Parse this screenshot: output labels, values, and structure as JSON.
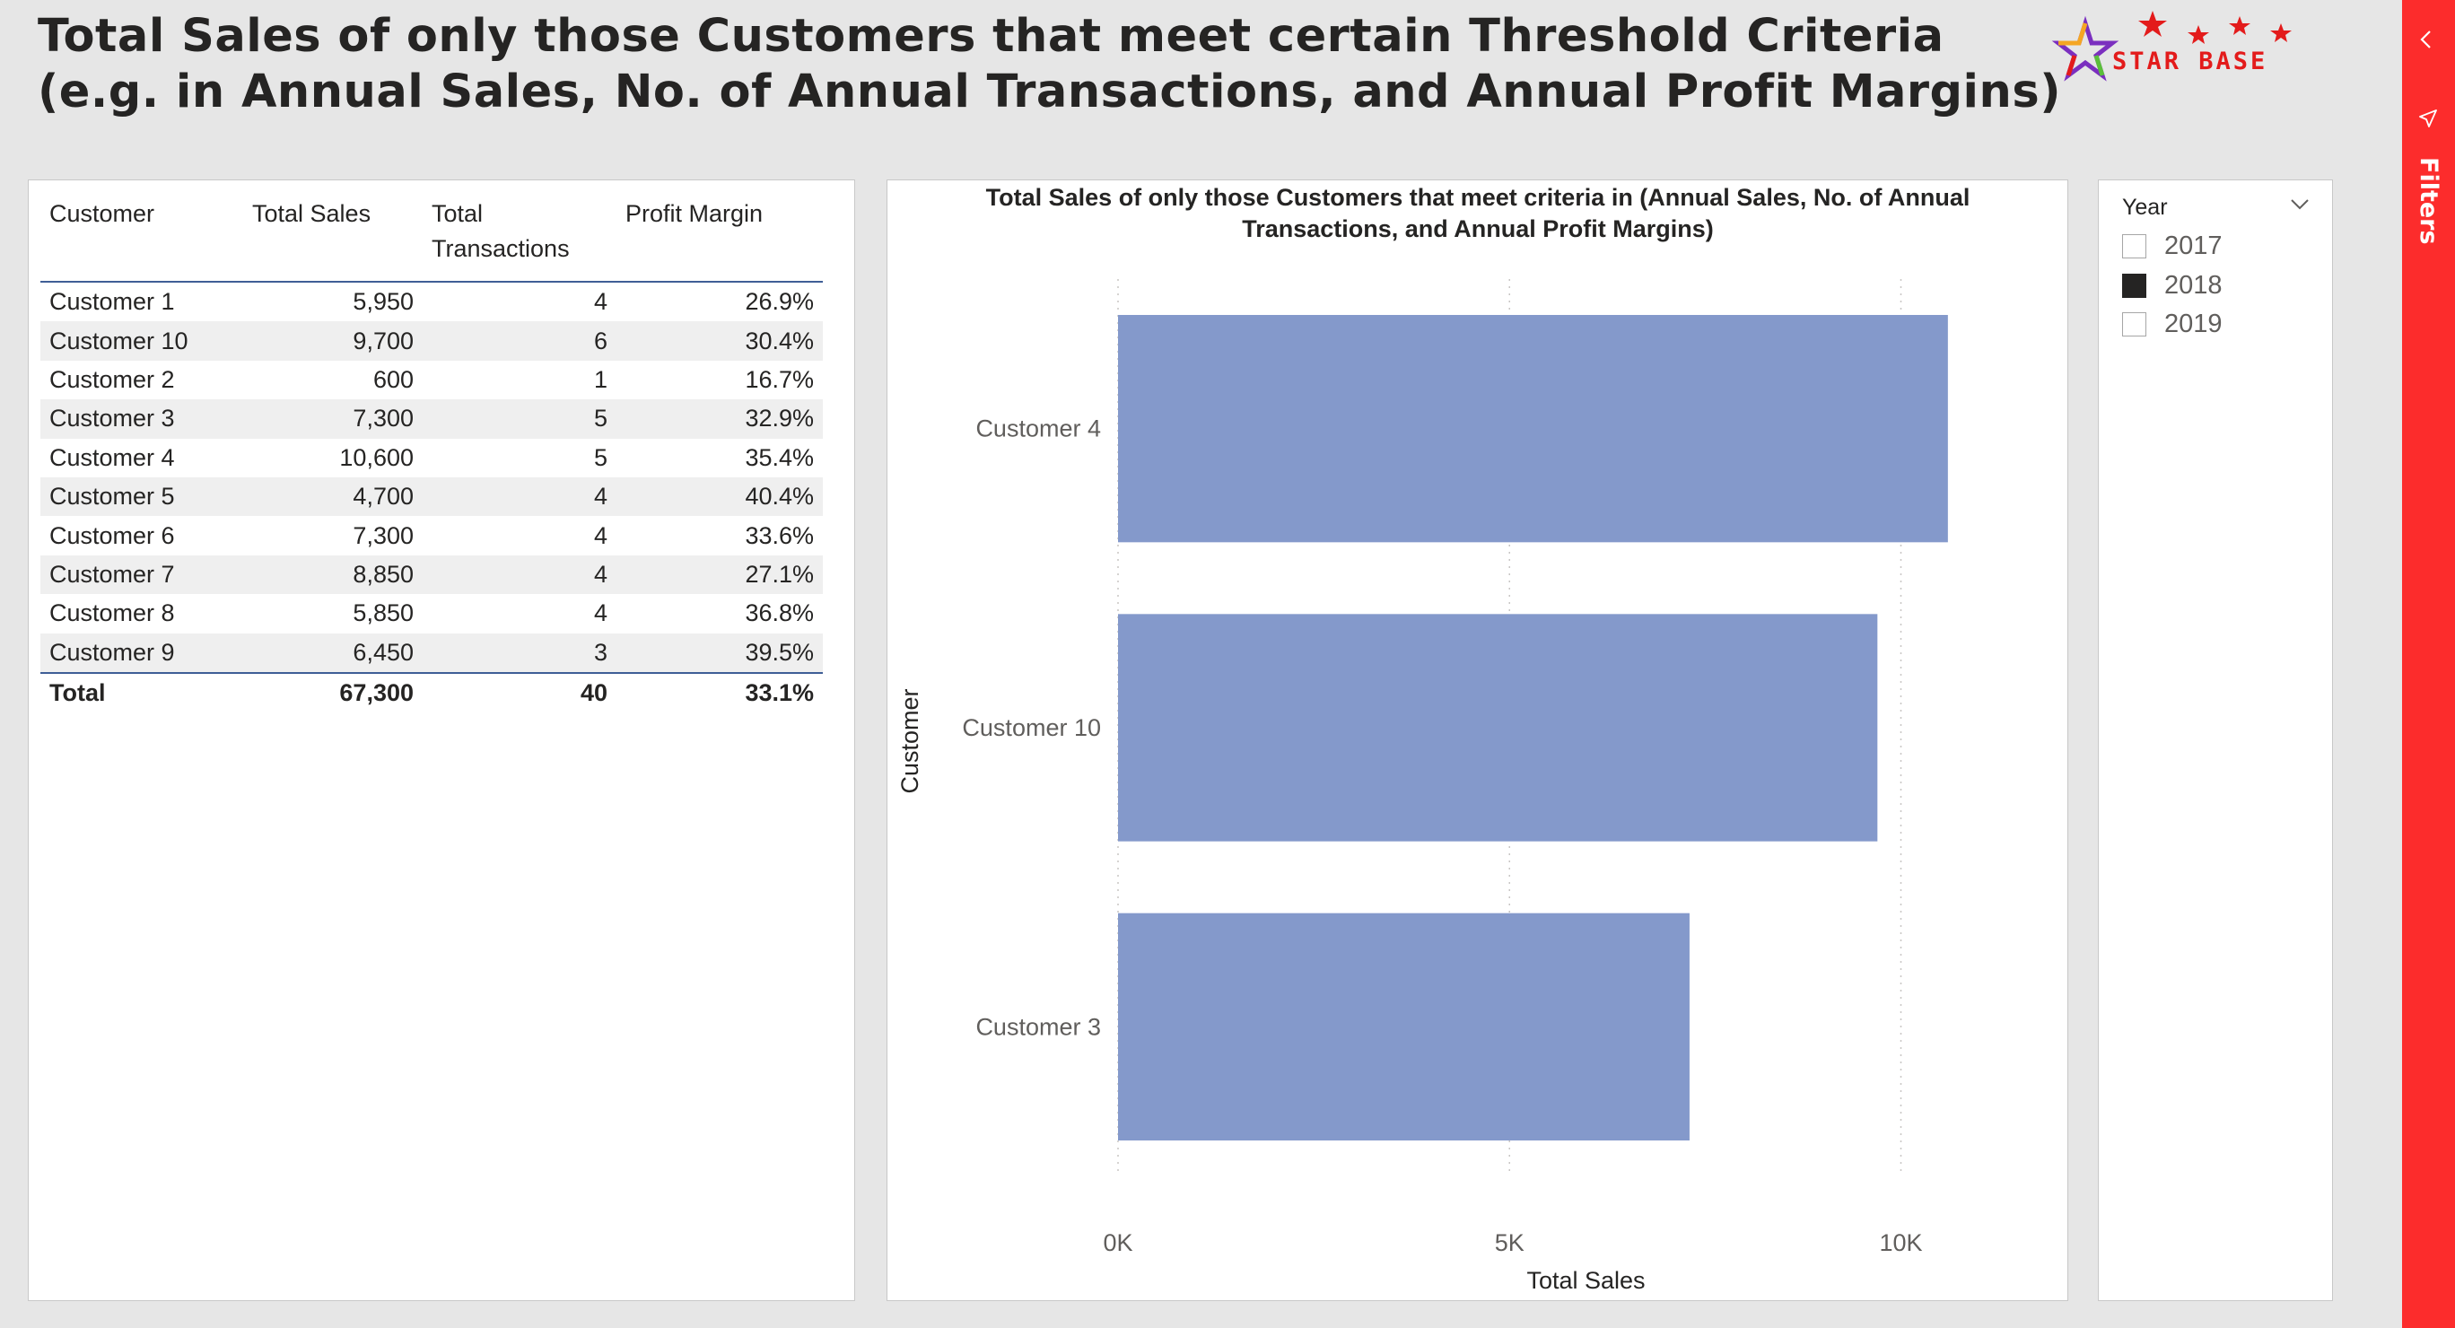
{
  "header": {
    "title_line1": "Total Sales of only those Customers that meet certain Threshold Criteria",
    "title_line2": "(e.g. in Annual Sales, No. of Annual Transactions, and Annual Profit Margins)"
  },
  "logo": {
    "text": "STAR BASE",
    "colors": {
      "red": "#e31b1b",
      "purple": "#7b2fbf",
      "orange": "#f5a623",
      "green": "#5bbf3a"
    }
  },
  "table": {
    "columns": [
      {
        "label_line1": "Customer",
        "label_line2": ""
      },
      {
        "label_line1": "Total Sales",
        "label_line2": ""
      },
      {
        "label_line1": "Total",
        "label_line2": "Transactions"
      },
      {
        "label_line1": "Profit Margin",
        "label_line2": ""
      }
    ],
    "rows": [
      {
        "customer": "Customer 1",
        "sales": "5,950",
        "transactions": "4",
        "margin": "26.9%"
      },
      {
        "customer": "Customer 10",
        "sales": "9,700",
        "transactions": "6",
        "margin": "30.4%"
      },
      {
        "customer": "Customer 2",
        "sales": "600",
        "transactions": "1",
        "margin": "16.7%"
      },
      {
        "customer": "Customer 3",
        "sales": "7,300",
        "transactions": "5",
        "margin": "32.9%"
      },
      {
        "customer": "Customer 4",
        "sales": "10,600",
        "transactions": "5",
        "margin": "35.4%"
      },
      {
        "customer": "Customer 5",
        "sales": "4,700",
        "transactions": "4",
        "margin": "40.4%"
      },
      {
        "customer": "Customer 6",
        "sales": "7,300",
        "transactions": "4",
        "margin": "33.6%"
      },
      {
        "customer": "Customer 7",
        "sales": "8,850",
        "transactions": "4",
        "margin": "27.1%"
      },
      {
        "customer": "Customer 8",
        "sales": "5,850",
        "transactions": "4",
        "margin": "36.8%"
      },
      {
        "customer": "Customer 9",
        "sales": "6,450",
        "transactions": "3",
        "margin": "39.5%"
      }
    ],
    "total": {
      "label": "Total",
      "sales": "67,300",
      "transactions": "40",
      "margin": "33.1%"
    }
  },
  "chart_data": {
    "type": "bar",
    "orientation": "horizontal",
    "title_line1": "Total Sales of only those Customers that meet criteria in (Annual Sales, No. of Annual",
    "title_line2": "Transactions, and Annual Profit Margins)",
    "categories": [
      "Customer 4",
      "Customer 10",
      "Customer 3"
    ],
    "values": [
      10600,
      9700,
      7300
    ],
    "xlabel": "Total Sales",
    "ylabel": "Customer",
    "xlim": [
      0,
      12000
    ],
    "xticks": [
      0,
      5000,
      10000
    ],
    "xtick_labels": [
      "0K",
      "5K",
      "10K"
    ],
    "grid": true,
    "bar_color": "#8499cb"
  },
  "slicer": {
    "label": "Year",
    "options": [
      {
        "label": "2017",
        "checked": false
      },
      {
        "label": "2018",
        "checked": true
      },
      {
        "label": "2019",
        "checked": false
      }
    ]
  },
  "filters_pane": {
    "label": "Filters",
    "color": "#fc2c2c"
  }
}
